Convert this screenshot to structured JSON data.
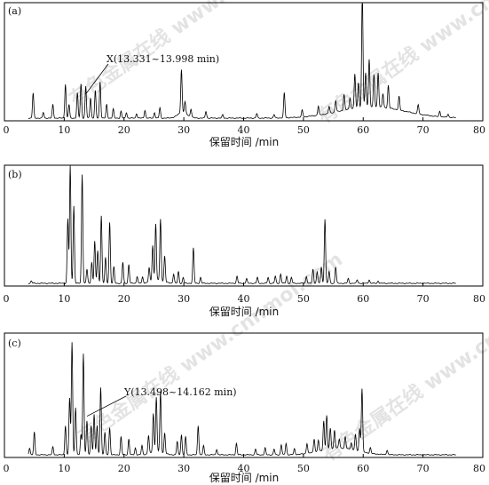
{
  "chart_data": [
    {
      "type": "line",
      "panel_label": "(a)",
      "xlabel": "保留时间 /min",
      "xlim": [
        0,
        80
      ],
      "x_ticks": [
        0,
        10,
        20,
        30,
        40,
        50,
        60,
        70,
        80
      ],
      "x_tick_labels": [
        "0",
        "10",
        "20",
        "30",
        "40",
        "50",
        "60",
        "70",
        "80"
      ],
      "annotation": "X(13.331~13.998 min)",
      "annotation_target_x": 13.6,
      "peaks": [
        [
          4.8,
          0.22
        ],
        [
          6.5,
          0.05
        ],
        [
          8.1,
          0.12
        ],
        [
          10.2,
          0.3
        ],
        [
          10.8,
          0.12
        ],
        [
          12.2,
          0.22
        ],
        [
          12.8,
          0.3
        ],
        [
          13.6,
          0.28
        ],
        [
          14.4,
          0.18
        ],
        [
          15.2,
          0.24
        ],
        [
          16.0,
          0.32
        ],
        [
          17.1,
          0.12
        ],
        [
          18.2,
          0.08
        ],
        [
          19.5,
          0.06
        ],
        [
          20.4,
          0.05
        ],
        [
          22.1,
          0.04
        ],
        [
          23.5,
          0.07
        ],
        [
          25.1,
          0.05
        ],
        [
          26.0,
          0.09
        ],
        [
          29.6,
          0.38
        ],
        [
          30.2,
          0.1
        ],
        [
          31.2,
          0.07
        ],
        [
          33.7,
          0.06
        ],
        [
          36.5,
          0.03
        ],
        [
          42.2,
          0.04
        ],
        [
          45.1,
          0.03
        ],
        [
          46.8,
          0.22
        ],
        [
          49.8,
          0.06
        ],
        [
          52.5,
          0.08
        ],
        [
          54.3,
          0.06
        ],
        [
          55.4,
          0.1
        ],
        [
          56.8,
          0.14
        ],
        [
          57.8,
          0.1
        ],
        [
          58.6,
          0.3
        ],
        [
          59.2,
          0.22
        ],
        [
          59.85,
          1.0
        ],
        [
          60.4,
          0.3
        ],
        [
          61.0,
          0.42
        ],
        [
          61.8,
          0.28
        ],
        [
          62.5,
          0.3
        ],
        [
          63.3,
          0.12
        ],
        [
          64.2,
          0.2
        ],
        [
          66.0,
          0.12
        ],
        [
          69.2,
          0.08
        ],
        [
          72.8,
          0.05
        ],
        [
          74.2,
          0.03
        ]
      ],
      "humps": [
        [
          61.5,
          5.5,
          0.1
        ],
        [
          29.8,
          0.8,
          0.05
        ]
      ]
    },
    {
      "type": "line",
      "panel_label": "(b)",
      "xlabel": "保留时间 /min",
      "xlim": [
        0,
        80
      ],
      "x_ticks": [
        0,
        10,
        20,
        30,
        40,
        50,
        60,
        70,
        80
      ],
      "x_tick_labels": [
        "0",
        "10",
        "20",
        "30",
        "40",
        "50",
        "60",
        "70",
        "80"
      ],
      "peaks": [
        [
          4.5,
          0.02
        ],
        [
          10.6,
          0.55
        ],
        [
          11.0,
          1.0
        ],
        [
          11.6,
          0.66
        ],
        [
          13.0,
          0.93
        ],
        [
          13.8,
          0.12
        ],
        [
          14.6,
          0.18
        ],
        [
          15.1,
          0.36
        ],
        [
          15.6,
          0.28
        ],
        [
          16.2,
          0.58
        ],
        [
          16.9,
          0.22
        ],
        [
          17.6,
          0.52
        ],
        [
          18.3,
          0.14
        ],
        [
          19.8,
          0.18
        ],
        [
          20.8,
          0.16
        ],
        [
          22.2,
          0.06
        ],
        [
          23.1,
          0.05
        ],
        [
          24.2,
          0.12
        ],
        [
          24.8,
          0.3
        ],
        [
          25.3,
          0.48
        ],
        [
          26.1,
          0.52
        ],
        [
          26.8,
          0.22
        ],
        [
          28.3,
          0.08
        ],
        [
          29.1,
          0.1
        ],
        [
          29.9,
          0.05
        ],
        [
          31.6,
          0.3
        ],
        [
          32.8,
          0.05
        ],
        [
          38.9,
          0.06
        ],
        [
          40.5,
          0.04
        ],
        [
          42.3,
          0.05
        ],
        [
          44.1,
          0.05
        ],
        [
          45.3,
          0.06
        ],
        [
          46.2,
          0.08
        ],
        [
          47.2,
          0.06
        ],
        [
          48.0,
          0.05
        ],
        [
          50.5,
          0.06
        ],
        [
          51.6,
          0.12
        ],
        [
          52.3,
          0.1
        ],
        [
          53.0,
          0.14
        ],
        [
          53.6,
          0.55
        ],
        [
          54.3,
          0.1
        ],
        [
          55.4,
          0.14
        ],
        [
          57.5,
          0.04
        ],
        [
          59.0,
          0.03
        ],
        [
          61.0,
          0.03
        ],
        [
          62.5,
          0.02
        ]
      ],
      "humps": [
        [
          25.5,
          1.0,
          0.03
        ]
      ]
    },
    {
      "type": "line",
      "panel_label": "(c)",
      "xlabel": "保留时间 /min",
      "xlim": [
        0,
        80
      ],
      "x_ticks": [
        0,
        10,
        20,
        30,
        40,
        50,
        60,
        70,
        80
      ],
      "x_tick_labels": [
        "0",
        "10",
        "20",
        "30",
        "40",
        "50",
        "60",
        "70",
        "80"
      ],
      "annotation": "Y(13.498~14.162 min)",
      "annotation_target_x": 13.8,
      "peaks": [
        [
          4.2,
          0.06
        ],
        [
          5.0,
          0.2
        ],
        [
          8.1,
          0.07
        ],
        [
          10.2,
          0.26
        ],
        [
          10.9,
          0.5
        ],
        [
          11.3,
          1.0
        ],
        [
          11.9,
          0.42
        ],
        [
          12.8,
          0.18
        ],
        [
          13.2,
          0.9
        ],
        [
          13.8,
          0.3
        ],
        [
          14.5,
          0.26
        ],
        [
          15.0,
          0.36
        ],
        [
          15.5,
          0.26
        ],
        [
          16.1,
          0.6
        ],
        [
          16.8,
          0.2
        ],
        [
          17.6,
          0.24
        ],
        [
          19.5,
          0.16
        ],
        [
          20.8,
          0.14
        ],
        [
          21.9,
          0.06
        ],
        [
          23.0,
          0.08
        ],
        [
          24.1,
          0.16
        ],
        [
          24.9,
          0.34
        ],
        [
          25.4,
          0.48
        ],
        [
          26.1,
          0.53
        ],
        [
          26.8,
          0.18
        ],
        [
          28.9,
          0.12
        ],
        [
          29.6,
          0.18
        ],
        [
          30.3,
          0.16
        ],
        [
          32.4,
          0.26
        ],
        [
          33.3,
          0.08
        ],
        [
          35.5,
          0.05
        ],
        [
          38.8,
          0.1
        ],
        [
          42.0,
          0.05
        ],
        [
          43.6,
          0.06
        ],
        [
          45.1,
          0.05
        ],
        [
          46.3,
          0.09
        ],
        [
          47.1,
          0.1
        ],
        [
          48.5,
          0.05
        ],
        [
          50.6,
          0.09
        ],
        [
          51.8,
          0.12
        ],
        [
          52.5,
          0.1
        ],
        [
          53.4,
          0.26
        ],
        [
          53.9,
          0.3
        ],
        [
          54.5,
          0.18
        ],
        [
          55.2,
          0.16
        ],
        [
          56.0,
          0.08
        ],
        [
          57.0,
          0.1
        ],
        [
          58.0,
          0.06
        ],
        [
          58.7,
          0.14
        ],
        [
          59.4,
          0.2
        ],
        [
          59.8,
          0.56
        ],
        [
          61.2,
          0.05
        ],
        [
          64.0,
          0.04
        ]
      ],
      "humps": [
        [
          56.0,
          3.0,
          0.06
        ],
        [
          25.5,
          1.0,
          0.03
        ]
      ]
    }
  ],
  "watermark": "有色金属在线 www.cnnmol.com"
}
